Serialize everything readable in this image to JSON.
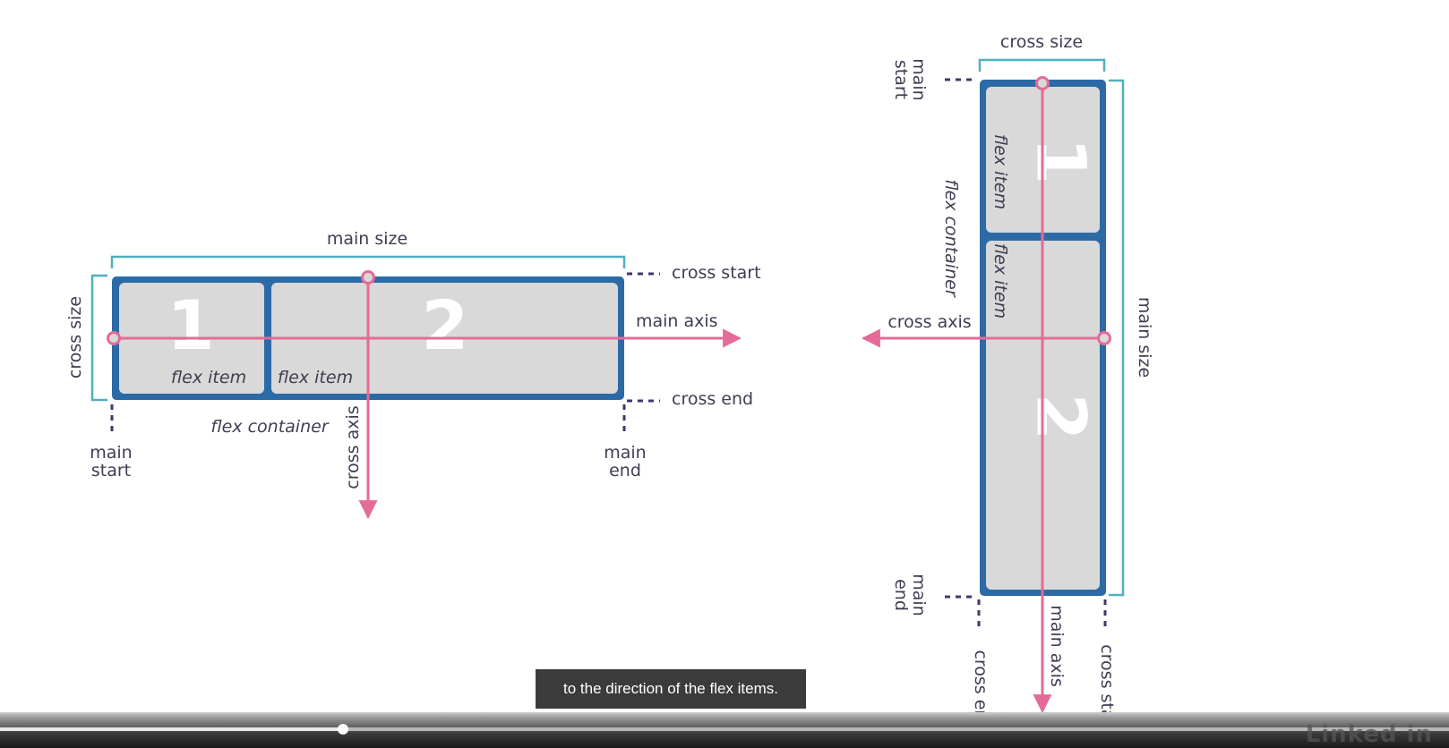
{
  "diagram_row": {
    "main_size": "main size",
    "cross_size": "cross size",
    "cross_start": "cross start",
    "cross_end": "cross end",
    "main_axis": "main axis",
    "cross_axis": "cross axis",
    "main_start": [
      "main",
      "start"
    ],
    "main_end": [
      "main",
      "end"
    ],
    "flex_container": "flex container",
    "items": [
      {
        "number": "1",
        "label": "flex item"
      },
      {
        "number": "2",
        "label": "flex item"
      }
    ]
  },
  "diagram_column": {
    "cross_size": "cross size",
    "main_size": "main size",
    "main_start": [
      "main",
      "start"
    ],
    "main_end": [
      "main",
      "end"
    ],
    "flex_container": "flex container",
    "cross_axis": "cross axis",
    "main_axis": "main axis",
    "cross_end": "cross end",
    "cross_start": "cross start",
    "items": [
      {
        "number": "1",
        "label": "flex item"
      },
      {
        "number": "2",
        "label": "flex item"
      }
    ]
  },
  "colors": {
    "container_border": "#2c6aa6",
    "item_fill": "#d9d9d9",
    "axis": "#e46b97",
    "bracket": "#4fb0be",
    "dash": "#3a3a6a"
  },
  "video": {
    "caption": "to the direction of the flex items.",
    "progress": 0.237,
    "watermark": "Linked in"
  }
}
